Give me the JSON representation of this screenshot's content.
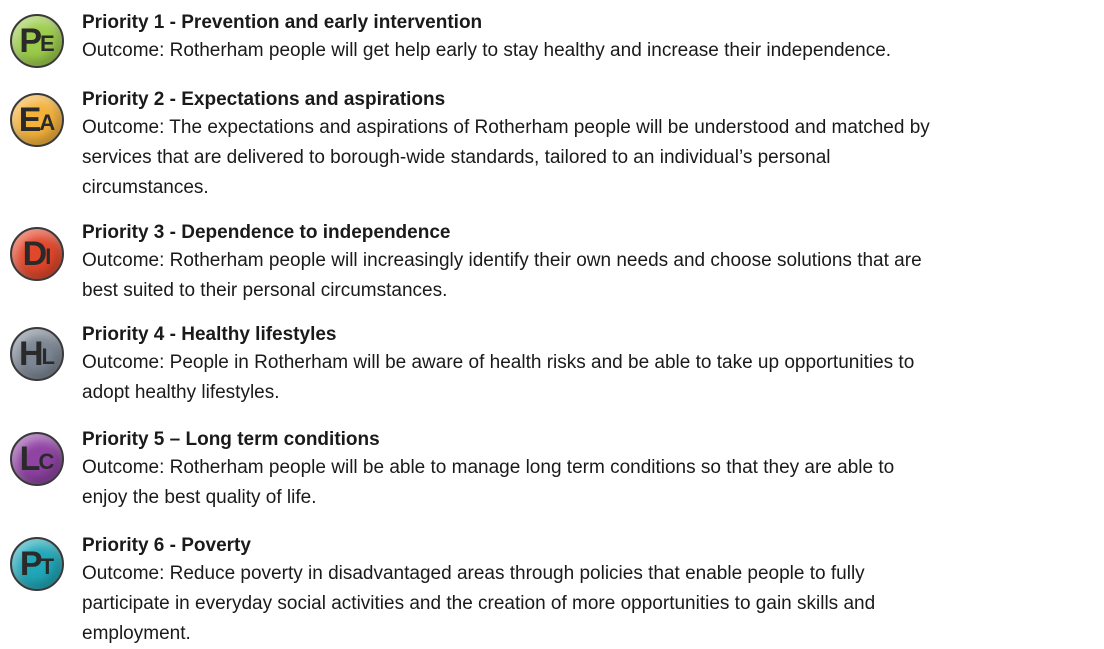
{
  "items": [
    {
      "icon": [
        "P",
        "E"
      ],
      "title": "Priority 1 - Prevention and early intervention",
      "outcome": [
        "Outcome: Rotherham people will get help early to stay healthy and increase their independence."
      ]
    },
    {
      "icon": [
        "E",
        "A"
      ],
      "title": "Priority 2 - Expectations and aspirations",
      "outcome": [
        "Outcome: The expectations and aspirations of Rotherham people will be understood and matched by",
        "services that are delivered to borough-wide standards, tailored to an individual’s personal",
        "circumstances."
      ]
    },
    {
      "icon": [
        "D",
        "I"
      ],
      "title": "Priority 3 - Dependence to independence",
      "outcome": [
        "Outcome: Rotherham people will increasingly identify their own needs and choose solutions that are",
        "best suited to their personal circumstances."
      ]
    },
    {
      "icon": [
        "H",
        "L"
      ],
      "title": "Priority 4 - Healthy lifestyles",
      "outcome": [
        "Outcome: People in Rotherham will be aware of health risks and be able to take up opportunities to",
        "adopt healthy lifestyles."
      ]
    },
    {
      "icon": [
        "L",
        "C"
      ],
      "title": "Priority 5 – Long term conditions",
      "outcome": [
        "Outcome: Rotherham people will be able to manage long term conditions so that they are able to",
        "enjoy the best quality of life."
      ]
    },
    {
      "icon": [
        "P",
        "T"
      ],
      "title": "Priority 6 - Poverty",
      "outcome": [
        "Outcome: Reduce poverty in disadvantaged areas through policies that enable people to fully",
        "participate in everyday social activities and the creation of more opportunities to gain skills and",
        "employment."
      ]
    }
  ]
}
